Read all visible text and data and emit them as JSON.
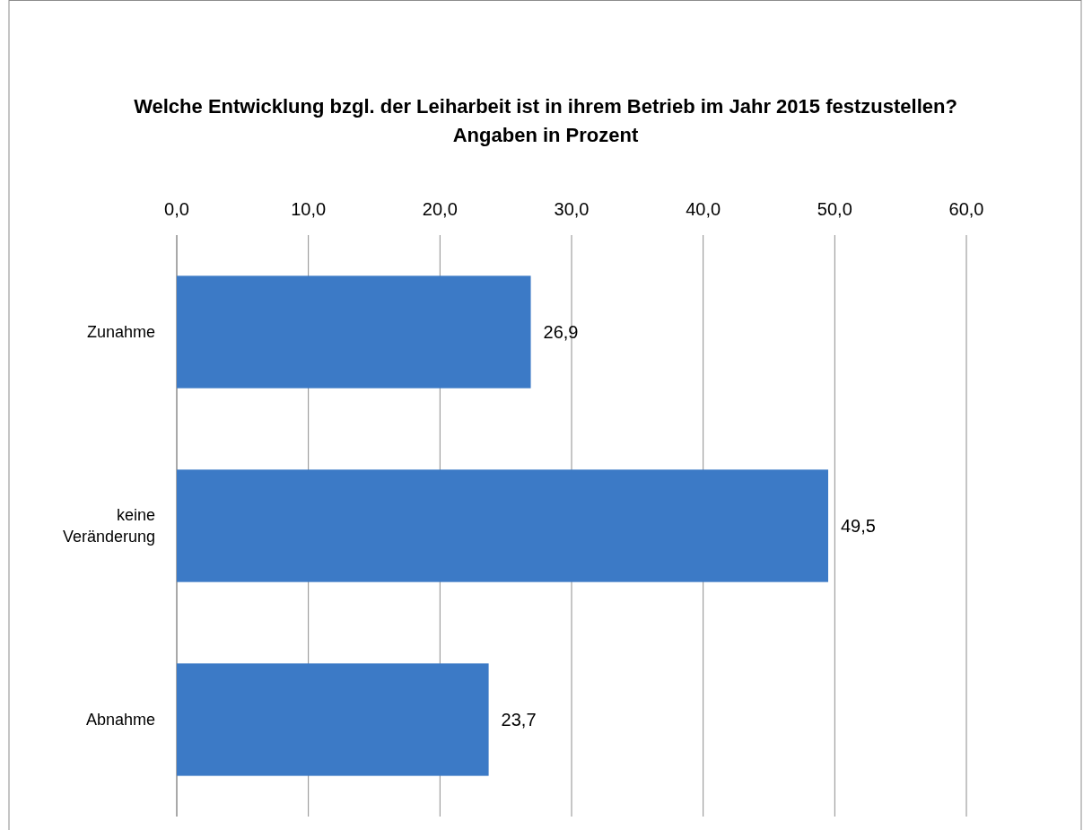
{
  "chart_data": {
    "type": "bar",
    "orientation": "horizontal",
    "title": "Welche Entwicklung bzgl. der Leiharbeit ist in ihrem Betrieb im Jahr 2015 festzustellen?",
    "subtitle": "Angaben in Prozent",
    "categories": [
      "Zunahme",
      "keine Veränderung",
      "Abnahme"
    ],
    "values": [
      26.9,
      49.5,
      23.7
    ],
    "value_labels": [
      "26,9",
      "49,5",
      "23,7"
    ],
    "color": "#3c7ac6",
    "xlim": [
      0,
      60
    ],
    "xticks": [
      {
        "value": 0,
        "label": "0,0"
      },
      {
        "value": 10,
        "label": "10,0"
      },
      {
        "value": 20,
        "label": "20,0"
      },
      {
        "value": 30,
        "label": "30,0"
      },
      {
        "value": 40,
        "label": "40,0"
      },
      {
        "value": 50,
        "label": "50,0"
      },
      {
        "value": 60,
        "label": "60,0"
      }
    ],
    "grid": "x"
  }
}
